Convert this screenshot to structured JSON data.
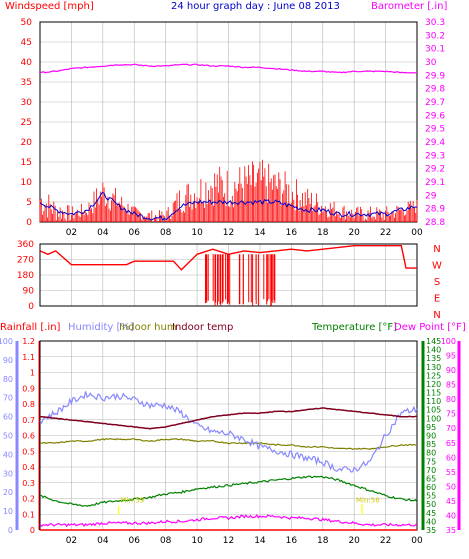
{
  "header": {
    "windspeed_title": "Windspeed [mph]",
    "graph_title": "24 hour graph day : June 08 2013",
    "barometer_title": "Barometer [.in]"
  },
  "bottom_legend": {
    "rainfall": "Rainfall [.in]",
    "humidity": "Humidity [%]",
    "indoor_hum": "Indoor hum",
    "indoor_temp": "Indoor temp",
    "temperature": "Temperature [°F]",
    "dew_point": "Dew Point [°F]"
  },
  "colors": {
    "wind": "#ff0000",
    "gust": "#0000cc",
    "barometer": "#ff00ff",
    "direction": "#ff0000",
    "humidity": "#8888ff",
    "indoor_hum": "#808000",
    "indoor_temp": "#800020",
    "temperature": "#008000",
    "dew_point": "#ff00ff",
    "rainfall": "#ff0000",
    "grid": "#b8b8b8",
    "marker": "#ffff00"
  },
  "chart_data": [
    {
      "type": "line",
      "name": "wind-barometer",
      "title": "24 hour graph day : June 08 2013",
      "x_ticks": [
        "02",
        "04",
        "06",
        "08",
        "10",
        "12",
        "14",
        "16",
        "18",
        "20",
        "22",
        "00"
      ],
      "y_left_ticks": [
        "0",
        "5",
        "10",
        "15",
        "20",
        "25",
        "30",
        "35",
        "40",
        "45",
        "50"
      ],
      "y_left_label": "Windspeed [mph]",
      "ylim_left": [
        0,
        50
      ],
      "y_right_ticks": [
        "28.8",
        "28.9",
        "29",
        "29.1",
        "29.2",
        "29.3",
        "29.4",
        "29.5",
        "29.6",
        "29.7",
        "29.8",
        "29.9",
        "30",
        "30.1",
        "30.2",
        "30.3"
      ],
      "y_right_label": "Barometer [.in]",
      "ylim_right": [
        28.8,
        30.3
      ],
      "x_hours": [
        0,
        1,
        2,
        3,
        4,
        5,
        6,
        7,
        8,
        9,
        10,
        11,
        12,
        13,
        14,
        15,
        16,
        17,
        18,
        19,
        20,
        21,
        22,
        23,
        24
      ],
      "series": [
        {
          "role": "wind_max",
          "values": [
            10,
            6,
            4,
            5,
            12,
            8,
            4,
            3,
            3,
            10,
            12,
            15,
            14,
            15,
            16,
            14,
            12,
            9,
            7,
            5,
            4,
            4,
            4,
            5,
            6
          ]
        },
        {
          "role": "wind_min",
          "values": [
            1,
            0,
            0,
            1,
            3,
            2,
            1,
            0,
            0,
            2,
            3,
            4,
            3,
            4,
            4,
            4,
            3,
            2,
            1,
            1,
            0,
            0,
            0,
            1,
            2
          ]
        },
        {
          "role": "wind_avg",
          "values": [
            5,
            3,
            2,
            3,
            7,
            4,
            2,
            1,
            1,
            4,
            5,
            5,
            5,
            5,
            5,
            5,
            4,
            3,
            3,
            2,
            2,
            2,
            2,
            3,
            4
          ]
        },
        {
          "role": "barometer",
          "values": [
            29.92,
            29.93,
            29.95,
            29.96,
            29.97,
            29.98,
            29.98,
            29.97,
            29.97,
            29.98,
            29.98,
            29.97,
            29.97,
            29.96,
            29.96,
            29.95,
            29.94,
            29.93,
            29.93,
            29.92,
            29.93,
            29.93,
            29.93,
            29.92,
            29.92
          ]
        }
      ],
      "grid": true
    },
    {
      "type": "line",
      "name": "wind-direction",
      "y_ticks": [
        "0",
        "90",
        "180",
        "270",
        "360"
      ],
      "y_labels_right": [
        "N",
        "W",
        "S",
        "E",
        "N"
      ],
      "ylim": [
        0,
        360
      ],
      "x_hours": [
        0,
        0.5,
        1,
        2,
        3,
        5.5,
        6,
        7,
        8.5,
        9,
        10,
        11,
        12,
        13,
        14,
        15,
        16,
        17,
        18,
        19,
        20,
        21,
        22,
        23,
        23.3,
        24
      ],
      "values": [
        320,
        300,
        320,
        240,
        240,
        240,
        260,
        260,
        260,
        210,
        300,
        330,
        300,
        320,
        310,
        320,
        330,
        320,
        330,
        340,
        350,
        350,
        350,
        350,
        220,
        220
      ],
      "grid": true
    },
    {
      "type": "line",
      "name": "temperature-humidity",
      "x_ticks": [
        "02",
        "04",
        "06",
        "08",
        "10",
        "12",
        "14",
        "16",
        "18",
        "20",
        "22",
        "00"
      ],
      "y_rain_ticks": [
        "0",
        "0.1",
        "0.2",
        "0.3",
        "0.4",
        "0.5",
        "0.6",
        "0.7",
        "0.8",
        "0.9",
        "1",
        "1.1",
        "1.2"
      ],
      "ylim_rain": [
        0,
        1.2
      ],
      "y_humidity_ticks": [
        "0",
        "10",
        "20",
        "30",
        "40",
        "50",
        "60",
        "70",
        "80",
        "90",
        "100"
      ],
      "ylim_humidity": [
        0,
        100
      ],
      "y_temp_ticks": [
        "35",
        "40",
        "45",
        "50",
        "55",
        "60",
        "65",
        "70",
        "75",
        "80",
        "85",
        "90",
        "95",
        "100",
        "105",
        "110",
        "115",
        "120",
        "125",
        "130",
        "135",
        "140",
        "145"
      ],
      "ylim_temp": [
        35,
        145
      ],
      "y_dew_ticks": [
        "35",
        "40",
        "45",
        "50",
        "55",
        "60",
        "65",
        "70",
        "75",
        "80",
        "85",
        "90",
        "95",
        "100"
      ],
      "ylim_dew": [
        35,
        100
      ],
      "x_hours": [
        0,
        1,
        2,
        3,
        4,
        5,
        6,
        7,
        8,
        9,
        10,
        11,
        12,
        13,
        14,
        15,
        16,
        17,
        18,
        19,
        20,
        21,
        22,
        23,
        24
      ],
      "annotations": [
        "Min:59",
        "Min:56"
      ],
      "series": [
        {
          "role": "humidity",
          "values": [
            58,
            62,
            68,
            72,
            70,
            71,
            69,
            66,
            66,
            62,
            55,
            52,
            51,
            48,
            44,
            42,
            40,
            38,
            36,
            32,
            32,
            36,
            50,
            62,
            64
          ]
        },
        {
          "role": "indoor_hum",
          "values": [
            46,
            46,
            47,
            47,
            48,
            48,
            48,
            47,
            48,
            48,
            47,
            47,
            46,
            46,
            46,
            45,
            45,
            44,
            44,
            43,
            43,
            43,
            44,
            45,
            45
          ]
        },
        {
          "role": "indoor_temp",
          "values": [
            101,
            100,
            99,
            98,
            97,
            96,
            95,
            94,
            95,
            97,
            99,
            101,
            102,
            103,
            103,
            104,
            104,
            105,
            106,
            105,
            104,
            103,
            102,
            101,
            101
          ]
        },
        {
          "role": "temperature",
          "values": [
            55,
            52,
            50,
            49,
            51,
            52,
            53,
            54,
            56,
            57,
            59,
            60,
            61,
            62,
            63,
            64,
            65,
            66,
            66,
            64,
            61,
            58,
            55,
            53,
            52
          ]
        },
        {
          "role": "dew_point",
          "values": [
            38,
            38,
            38,
            38,
            39,
            39,
            39,
            39,
            40,
            40,
            41,
            42,
            42,
            43,
            43,
            43,
            42,
            42,
            41,
            40,
            39,
            38,
            38,
            38,
            38
          ]
        },
        {
          "role": "rainfall",
          "values": [
            0,
            0,
            0,
            0,
            0,
            0,
            0,
            0,
            0,
            0,
            0,
            0,
            0,
            0,
            0,
            0,
            0,
            0,
            0,
            0,
            0,
            0,
            0,
            0,
            0
          ]
        }
      ],
      "grid": true
    }
  ]
}
